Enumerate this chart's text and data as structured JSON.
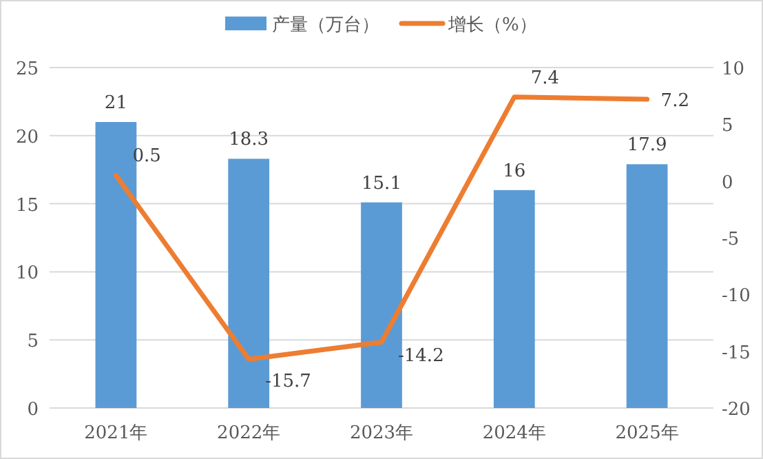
{
  "chart_data": {
    "type": "bar",
    "categories": [
      "2021年",
      "2022年",
      "2023年",
      "2024年",
      "2025年"
    ],
    "series": [
      {
        "name": "产量（万台）",
        "color": "#5b9bd5",
        "values": [
          21,
          18.3,
          15.1,
          16,
          17.9
        ]
      },
      {
        "name": "增长（%）",
        "type": "line",
        "axis": "y2",
        "color": "#ed7d31",
        "values": [
          0.5,
          -15.7,
          -14.2,
          7.4,
          7.2
        ]
      }
    ],
    "ylim": [
      0,
      25
    ],
    "yticks": [
      0,
      5,
      10,
      15,
      20,
      25
    ],
    "y2lim": [
      -20,
      10
    ],
    "y2ticks": [
      -20,
      -15,
      -10,
      -5,
      0,
      5,
      10
    ],
    "grid": "y",
    "legend": "top",
    "data_labels": true,
    "marker": "none",
    "line_style": "solid"
  }
}
